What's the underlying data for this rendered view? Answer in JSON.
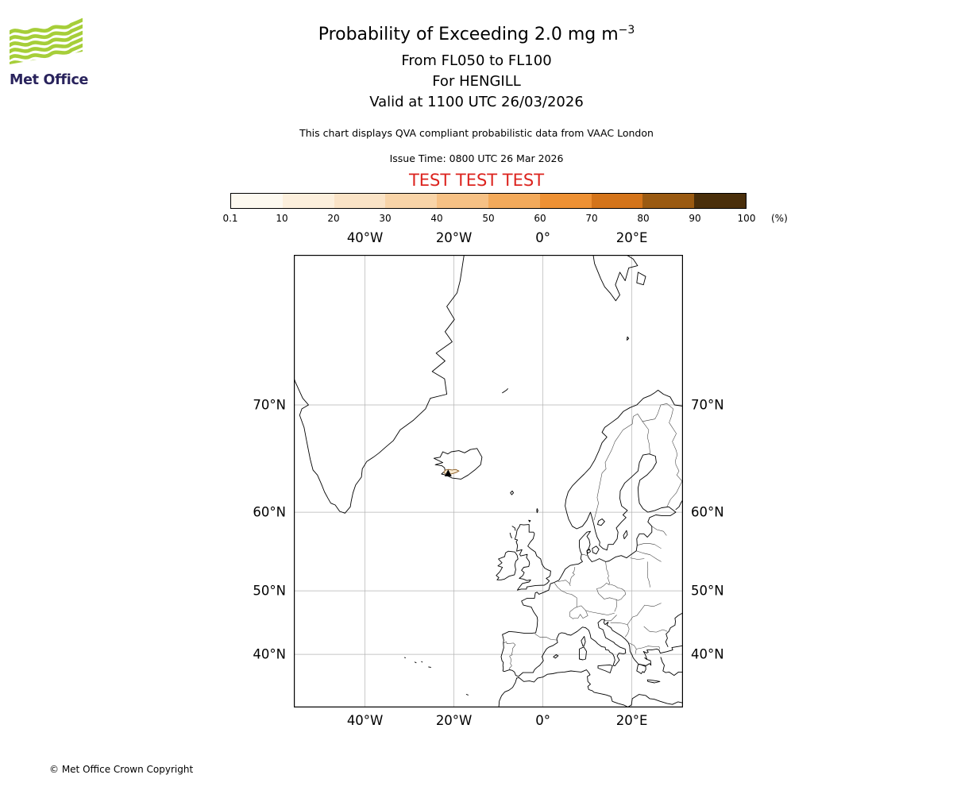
{
  "header": {
    "title": "Probability of Exceeding 2.0 mg m",
    "title_superscript": "−3",
    "flight_levels": "From FL050 to FL100",
    "volcano": "For HENGILL",
    "valid_time": "Valid at 1100 UTC 26/03/2026",
    "qva_note": "This chart displays QVA compliant probabilistic data from VAAC London",
    "issue_time": "Issue Time: 0800 UTC 26 Mar 2026",
    "test_banner": "TEST TEST TEST",
    "test_color": "#dc241f"
  },
  "logo": {
    "brand": "Met Office",
    "green": "#a6ce39",
    "navy": "#29235c"
  },
  "colorbar": {
    "tick_labels": [
      "0.1",
      "10",
      "20",
      "30",
      "40",
      "50",
      "60",
      "70",
      "80",
      "90",
      "100"
    ],
    "unit": "(%)",
    "segment_colors": [
      "#fdf9f0",
      "#fcefdc",
      "#fae3c6",
      "#f8d4a8",
      "#f6c185",
      "#f3aa5b",
      "#ee9134",
      "#d4741a",
      "#9a5a12",
      "#4a2f0b"
    ]
  },
  "map": {
    "lon_ticks": [
      {
        "label": "40°W",
        "deg": -40
      },
      {
        "label": "20°W",
        "deg": -20
      },
      {
        "label": "0°",
        "deg": 0
      },
      {
        "label": "20°E",
        "deg": 20
      }
    ],
    "lat_ticks": [
      {
        "label": "70°N",
        "deg": 70
      },
      {
        "label": "60°N",
        "deg": 60
      },
      {
        "label": "50°N",
        "deg": 50
      },
      {
        "label": "40°N",
        "deg": 40
      }
    ]
  },
  "footer": {
    "copyright": "© Met Office Crown Copyright"
  }
}
